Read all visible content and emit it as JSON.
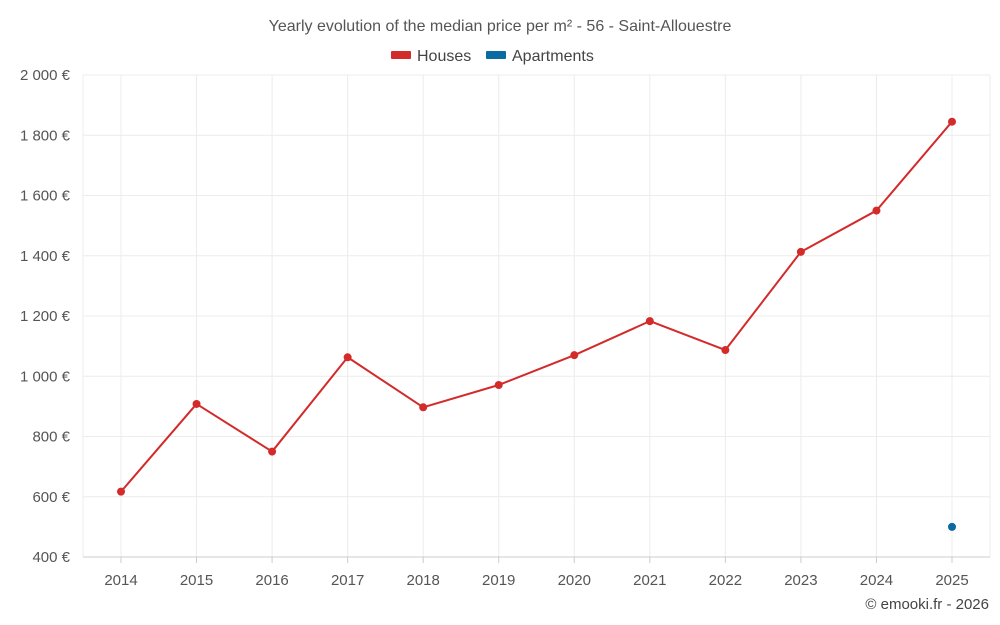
{
  "chart_data": {
    "type": "line",
    "title": "Yearly evolution of the median price per m² - 56 - Saint-Allouestre",
    "categories": [
      "2014",
      "2015",
      "2016",
      "2017",
      "2018",
      "2019",
      "2020",
      "2021",
      "2022",
      "2023",
      "2024",
      "2025"
    ],
    "series": [
      {
        "name": "Houses",
        "color": "#d32a2a",
        "values": [
          617,
          908,
          750,
          1063,
          897,
          971,
          1070,
          1183,
          1087,
          1413,
          1550,
          1845
        ]
      },
      {
        "name": "Apartments",
        "color": "#0b6aa2",
        "values": [
          null,
          null,
          null,
          null,
          null,
          null,
          null,
          null,
          null,
          null,
          null,
          500
        ]
      }
    ],
    "ylim": [
      400,
      2000
    ],
    "yticks": [
      400,
      600,
      800,
      1000,
      1200,
      1400,
      1600,
      1800,
      2000
    ],
    "ytick_labels": [
      "400 €",
      "600 €",
      "800 €",
      "1 000 €",
      "1 200 €",
      "1 400 €",
      "1 600 €",
      "1 800 €",
      "2 000 €"
    ],
    "xlabel": "",
    "ylabel": "",
    "grid": true,
    "legend_position": "top-center"
  },
  "credit": "© emooki.fr - 2026"
}
